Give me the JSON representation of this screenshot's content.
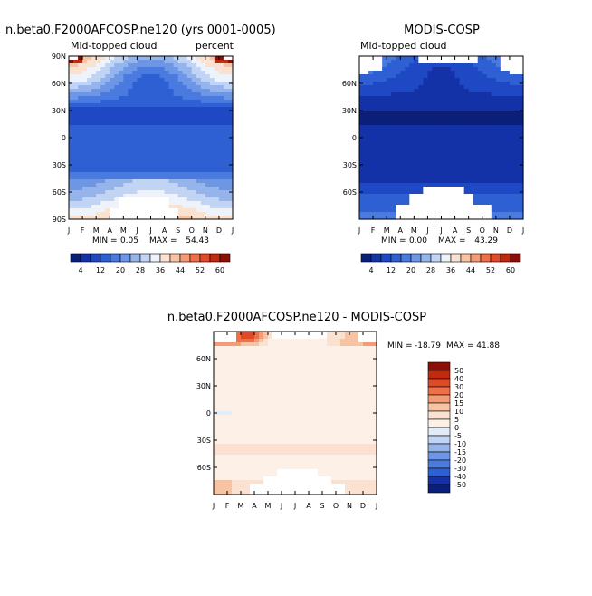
{
  "chart_data": [
    {
      "type": "heatmap",
      "title": "n.beta0.F2000AFCOSP.ne120 (yrs 0001-0005)",
      "subtitle_left": "Mid-topped cloud",
      "subtitle_right": "percent",
      "x_ticks": [
        "J",
        "F",
        "M",
        "A",
        "M",
        "J",
        "J",
        "A",
        "S",
        "O",
        "N",
        "D",
        "J"
      ],
      "y_ticks": [
        "90N",
        "60N",
        "30N",
        "0",
        "30S",
        "60S",
        "90S"
      ],
      "ylim": [
        -90,
        90
      ],
      "min_label": "MIN =",
      "min_value": "0.05",
      "max_label": "MAX =",
      "max_value": "54.43",
      "colorbar_ticks": [
        "4",
        "12",
        "20",
        "28",
        "36",
        "44",
        "52",
        "60"
      ],
      "contour_levels": [
        4,
        8,
        12,
        16,
        20,
        24,
        28,
        32,
        36,
        40,
        44,
        48,
        52,
        56,
        60
      ]
    },
    {
      "type": "heatmap",
      "title": "MODIS-COSP",
      "subtitle_left": "Mid-topped cloud",
      "x_ticks": [
        "J",
        "F",
        "M",
        "A",
        "M",
        "J",
        "J",
        "A",
        "S",
        "O",
        "N",
        "D",
        "J"
      ],
      "y_ticks": [
        "60N",
        "30N",
        "0",
        "30S",
        "60S"
      ],
      "ylim": [
        -90,
        90
      ],
      "min_label": "MIN =",
      "min_value": "0.00",
      "max_label": "MAX =",
      "max_value": "43.29",
      "colorbar_ticks": [
        "4",
        "12",
        "20",
        "28",
        "36",
        "44",
        "52",
        "60"
      ],
      "contour_levels": [
        4,
        8,
        12,
        16,
        20,
        24,
        28,
        32,
        36,
        40,
        44,
        48,
        52,
        56,
        60
      ]
    },
    {
      "type": "heatmap",
      "title": "n.beta0.F2000AFCOSP.ne120 - MODIS-COSP",
      "x_ticks": [
        "J",
        "F",
        "M",
        "A",
        "M",
        "J",
        "J",
        "A",
        "S",
        "O",
        "N",
        "D",
        "J"
      ],
      "y_ticks": [
        "60N",
        "30N",
        "0",
        "30S",
        "60S"
      ],
      "ylim": [
        -90,
        90
      ],
      "min_label": "MIN =",
      "min_value": "-18.79",
      "max_label": "MAX =",
      "max_value": "41.88",
      "colorbar_labels": [
        "50",
        "40",
        "30",
        "20",
        "15",
        "10",
        "5",
        "0",
        "-5",
        "-10",
        "-15",
        "-20",
        "-30",
        "-40",
        "-50"
      ]
    }
  ],
  "colors": {
    "seq": [
      "#0a1f78",
      "#1432a8",
      "#1f48c4",
      "#2e60d4",
      "#4a7ade",
      "#6d96e4",
      "#96b4ec",
      "#c2d4f4",
      "#eef2fa",
      "#fbe2d0",
      "#f7c3a2",
      "#f49a74",
      "#ee6f48",
      "#e04a26",
      "#c02a10",
      "#8c0e06"
    ],
    "div": [
      "#8c0e06",
      "#c02a10",
      "#e04a26",
      "#ee6f48",
      "#f49a74",
      "#f7c3a2",
      "#fbe2d0",
      "#fdf0e6",
      "#e2ebf8",
      "#c2d4f4",
      "#96b4ec",
      "#6d96e4",
      "#4a7ade",
      "#2e60d4",
      "#1432a8",
      "#0a1f78"
    ],
    "missing": "#ffffff"
  }
}
